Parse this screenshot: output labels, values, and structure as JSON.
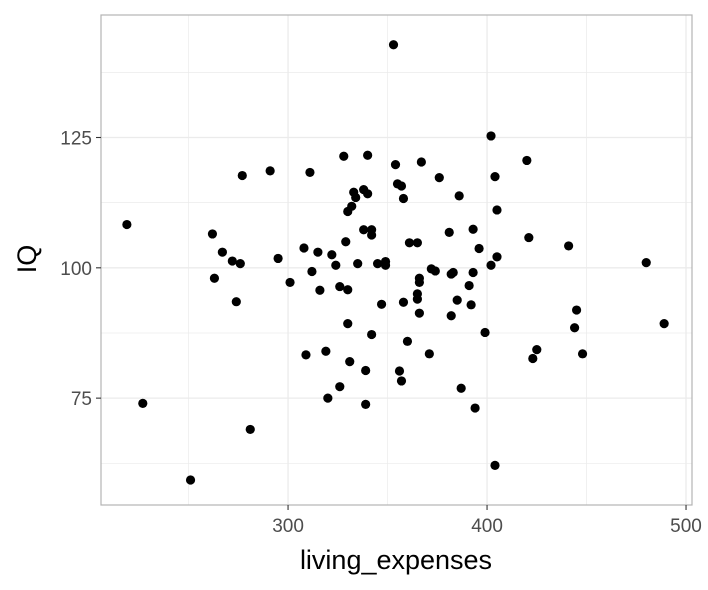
{
  "chart_data": {
    "type": "scatter",
    "xlabel": "living_expenses",
    "ylabel": "IQ",
    "xlim": [
      206,
      503
    ],
    "ylim": [
      54.5,
      148.5
    ],
    "x_major_ticks": [
      300,
      400,
      500
    ],
    "x_minor_ticks": [
      250,
      350,
      450
    ],
    "y_major_ticks": [
      75,
      100,
      125
    ],
    "y_minor_ticks": [
      62.5,
      87.5,
      112.5,
      137.5
    ],
    "x_tick_labels": [
      "300",
      "400",
      "500"
    ],
    "y_tick_labels": [
      "75",
      "100",
      "125"
    ],
    "grid": true,
    "theme": "light",
    "point_color": "#000000",
    "grid_color": "#ebebeb",
    "panel_border_color": "#b3b3b3",
    "points": [
      {
        "x": 219,
        "y": 108.3
      },
      {
        "x": 227,
        "y": 74.0
      },
      {
        "x": 251,
        "y": 59.3
      },
      {
        "x": 262,
        "y": 106.5
      },
      {
        "x": 263,
        "y": 98.0
      },
      {
        "x": 267,
        "y": 103.0
      },
      {
        "x": 272,
        "y": 101.3
      },
      {
        "x": 274,
        "y": 93.5
      },
      {
        "x": 276,
        "y": 100.8
      },
      {
        "x": 277,
        "y": 117.7
      },
      {
        "x": 281,
        "y": 69.0
      },
      {
        "x": 291,
        "y": 118.6
      },
      {
        "x": 295,
        "y": 101.8
      },
      {
        "x": 301,
        "y": 97.2
      },
      {
        "x": 308,
        "y": 103.8
      },
      {
        "x": 309,
        "y": 83.3
      },
      {
        "x": 311,
        "y": 118.3
      },
      {
        "x": 312,
        "y": 99.3
      },
      {
        "x": 315,
        "y": 103.0
      },
      {
        "x": 316,
        "y": 95.7
      },
      {
        "x": 319,
        "y": 84.0
      },
      {
        "x": 320,
        "y": 75.0
      },
      {
        "x": 322,
        "y": 102.5
      },
      {
        "x": 324,
        "y": 100.5
      },
      {
        "x": 326,
        "y": 96.4
      },
      {
        "x": 326,
        "y": 77.2
      },
      {
        "x": 328,
        "y": 121.4
      },
      {
        "x": 329,
        "y": 105.0
      },
      {
        "x": 330,
        "y": 89.3
      },
      {
        "x": 330,
        "y": 95.8
      },
      {
        "x": 330,
        "y": 110.8
      },
      {
        "x": 331,
        "y": 82.0
      },
      {
        "x": 332,
        "y": 111.8
      },
      {
        "x": 333,
        "y": 114.5
      },
      {
        "x": 334,
        "y": 113.5
      },
      {
        "x": 335,
        "y": 100.8
      },
      {
        "x": 338,
        "y": 107.3
      },
      {
        "x": 338,
        "y": 115.0
      },
      {
        "x": 339,
        "y": 80.3
      },
      {
        "x": 339,
        "y": 73.8
      },
      {
        "x": 340,
        "y": 121.6
      },
      {
        "x": 340,
        "y": 114.2
      },
      {
        "x": 342,
        "y": 106.3
      },
      {
        "x": 342,
        "y": 107.3
      },
      {
        "x": 342,
        "y": 87.2
      },
      {
        "x": 345,
        "y": 100.8
      },
      {
        "x": 347,
        "y": 93.0
      },
      {
        "x": 349,
        "y": 101.2
      },
      {
        "x": 349,
        "y": 100.5
      },
      {
        "x": 353,
        "y": 142.8
      },
      {
        "x": 354,
        "y": 119.8
      },
      {
        "x": 355,
        "y": 116.1
      },
      {
        "x": 356,
        "y": 80.2
      },
      {
        "x": 357,
        "y": 78.3
      },
      {
        "x": 357,
        "y": 115.7
      },
      {
        "x": 358,
        "y": 113.3
      },
      {
        "x": 358,
        "y": 93.4
      },
      {
        "x": 360,
        "y": 85.9
      },
      {
        "x": 361,
        "y": 104.8
      },
      {
        "x": 365,
        "y": 104.8
      },
      {
        "x": 365,
        "y": 94.0
      },
      {
        "x": 365,
        "y": 95.0
      },
      {
        "x": 366,
        "y": 91.3
      },
      {
        "x": 366,
        "y": 97.2
      },
      {
        "x": 366,
        "y": 98.0
      },
      {
        "x": 367,
        "y": 120.3
      },
      {
        "x": 371,
        "y": 83.5
      },
      {
        "x": 372,
        "y": 99.8
      },
      {
        "x": 374,
        "y": 99.4
      },
      {
        "x": 376,
        "y": 117.3
      },
      {
        "x": 381,
        "y": 106.8
      },
      {
        "x": 382,
        "y": 90.8
      },
      {
        "x": 382,
        "y": 98.8
      },
      {
        "x": 383,
        "y": 99.1
      },
      {
        "x": 385,
        "y": 93.8
      },
      {
        "x": 386,
        "y": 113.8
      },
      {
        "x": 387,
        "y": 76.9
      },
      {
        "x": 391,
        "y": 96.6
      },
      {
        "x": 392,
        "y": 92.9
      },
      {
        "x": 393,
        "y": 107.4
      },
      {
        "x": 393,
        "y": 99.1
      },
      {
        "x": 394,
        "y": 73.1
      },
      {
        "x": 396,
        "y": 103.7
      },
      {
        "x": 399,
        "y": 87.6
      },
      {
        "x": 402,
        "y": 100.5
      },
      {
        "x": 402,
        "y": 125.3
      },
      {
        "x": 404,
        "y": 62.1
      },
      {
        "x": 404,
        "y": 117.5
      },
      {
        "x": 405,
        "y": 102.1
      },
      {
        "x": 405,
        "y": 111.1
      },
      {
        "x": 420,
        "y": 120.6
      },
      {
        "x": 421,
        "y": 105.8
      },
      {
        "x": 423,
        "y": 82.6
      },
      {
        "x": 425,
        "y": 84.3
      },
      {
        "x": 441,
        "y": 104.2
      },
      {
        "x": 444,
        "y": 88.5
      },
      {
        "x": 445,
        "y": 91.9
      },
      {
        "x": 448,
        "y": 83.5
      },
      {
        "x": 480,
        "y": 101.0
      },
      {
        "x": 489,
        "y": 89.3
      }
    ]
  }
}
